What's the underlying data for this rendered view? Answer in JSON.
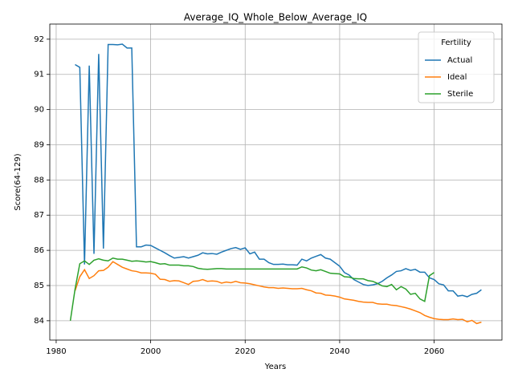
{
  "chart_data": {
    "type": "line",
    "title": "Average_IQ_Whole_Below_Average_IQ",
    "x_label": "Years",
    "y_label": "Score(64-129)",
    "legend_title": "Fertility",
    "legend": "upper right",
    "grid": true,
    "xlim": [
      1978.65,
      2074.35
    ],
    "ylim": [
      83.45,
      92.43
    ],
    "xticks": [
      1980,
      2000,
      2020,
      2040,
      2060
    ],
    "yticks": [
      84,
      85,
      86,
      87,
      88,
      89,
      90,
      91,
      92
    ],
    "x": [
      1983,
      1984,
      1985,
      1986,
      1987,
      1988,
      1989,
      1990,
      1991,
      1992,
      1993,
      1994,
      1995,
      1996,
      1997,
      1998,
      1999,
      2000,
      2001,
      2002,
      2003,
      2004,
      2005,
      2006,
      2007,
      2008,
      2009,
      2010,
      2011,
      2012,
      2013,
      2014,
      2015,
      2016,
      2017,
      2018,
      2019,
      2020,
      2021,
      2022,
      2023,
      2024,
      2025,
      2026,
      2027,
      2028,
      2029,
      2030,
      2031,
      2032,
      2033,
      2034,
      2035,
      2036,
      2037,
      2038,
      2039,
      2040,
      2041,
      2042,
      2043,
      2044,
      2045,
      2046,
      2047,
      2048,
      2049,
      2050,
      2051,
      2052,
      2053,
      2054,
      2055,
      2056,
      2057,
      2058,
      2059,
      2060,
      2061,
      2062,
      2063,
      2064,
      2065,
      2066,
      2067,
      2068,
      2069,
      2070
    ],
    "series": [
      {
        "name": "Actual",
        "color": "#1f77b4",
        "values": [
          null,
          91.28,
          91.2,
          85.6,
          91.25,
          85.9,
          91.58,
          86.05,
          91.85,
          91.85,
          91.84,
          91.86,
          91.75,
          91.75,
          86.1,
          86.1,
          86.15,
          86.14,
          86.07,
          86.0,
          85.93,
          85.85,
          85.78,
          85.8,
          85.82,
          85.78,
          85.82,
          85.86,
          85.93,
          85.9,
          85.91,
          85.89,
          85.95,
          86.0,
          86.05,
          86.08,
          86.03,
          86.07,
          85.9,
          85.95,
          85.75,
          85.75,
          85.65,
          85.6,
          85.6,
          85.61,
          85.59,
          85.59,
          85.58,
          85.75,
          85.7,
          85.78,
          85.83,
          85.88,
          85.78,
          85.75,
          85.65,
          85.55,
          85.37,
          85.3,
          85.17,
          85.1,
          85.03,
          85.0,
          85.02,
          85.05,
          85.12,
          85.22,
          85.3,
          85.4,
          85.42,
          85.48,
          85.43,
          85.46,
          85.38,
          85.38,
          85.22,
          85.17,
          85.05,
          85.02,
          84.85,
          84.85,
          84.7,
          84.72,
          84.68,
          84.75,
          84.78,
          84.88
        ]
      },
      {
        "name": "Ideal",
        "color": "#ff7f0e",
        "values": [
          null,
          84.85,
          85.25,
          85.45,
          85.2,
          85.28,
          85.42,
          85.43,
          85.52,
          85.68,
          85.6,
          85.52,
          85.47,
          85.42,
          85.4,
          85.36,
          85.36,
          85.35,
          85.32,
          85.18,
          85.17,
          85.12,
          85.14,
          85.13,
          85.08,
          85.03,
          85.12,
          85.13,
          85.17,
          85.12,
          85.13,
          85.12,
          85.07,
          85.1,
          85.08,
          85.12,
          85.08,
          85.07,
          85.05,
          85.02,
          84.99,
          84.96,
          84.94,
          84.94,
          84.92,
          84.93,
          84.92,
          84.91,
          84.91,
          84.92,
          84.88,
          84.85,
          84.79,
          84.78,
          84.73,
          84.72,
          84.7,
          84.67,
          84.62,
          84.6,
          84.58,
          84.55,
          84.53,
          84.52,
          84.52,
          84.48,
          84.47,
          84.47,
          84.44,
          84.43,
          84.4,
          84.37,
          84.33,
          84.28,
          84.23,
          84.15,
          84.1,
          84.06,
          84.04,
          84.03,
          84.03,
          84.05,
          84.03,
          84.04,
          83.97,
          84.01,
          83.92,
          83.96
        ]
      },
      {
        "name": "Sterile",
        "color": "#2ca02c",
        "values": [
          84.0,
          84.9,
          85.62,
          85.7,
          85.6,
          85.72,
          85.76,
          85.72,
          85.7,
          85.78,
          85.75,
          85.75,
          85.72,
          85.69,
          85.7,
          85.69,
          85.67,
          85.68,
          85.65,
          85.61,
          85.62,
          85.58,
          85.58,
          85.58,
          85.56,
          85.56,
          85.54,
          85.49,
          85.47,
          85.46,
          85.47,
          85.48,
          85.48,
          85.47,
          85.47,
          85.47,
          85.47,
          85.47,
          85.47,
          85.47,
          85.47,
          85.47,
          85.47,
          85.47,
          85.47,
          85.47,
          85.47,
          85.47,
          85.47,
          85.53,
          85.5,
          85.44,
          85.42,
          85.45,
          85.4,
          85.35,
          85.34,
          85.33,
          85.25,
          85.24,
          85.2,
          85.19,
          85.19,
          85.14,
          85.12,
          85.06,
          84.99,
          84.97,
          85.03,
          84.88,
          84.97,
          84.9,
          84.75,
          84.78,
          84.62,
          84.55,
          85.28,
          85.37,
          null,
          null,
          null,
          null,
          null,
          null,
          null,
          null,
          null,
          null
        ]
      }
    ]
  }
}
